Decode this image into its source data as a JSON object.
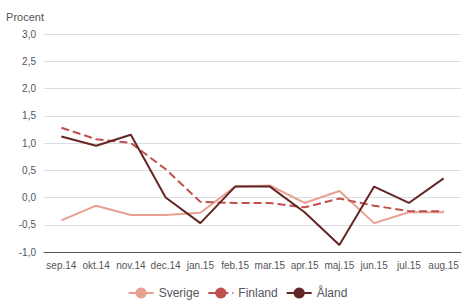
{
  "chart_data": {
    "type": "line",
    "ylabel": "Procent",
    "categories": [
      "sep.14",
      "okt.14",
      "nov.14",
      "dec.14",
      "jan.15",
      "feb.15",
      "mar.15",
      "apr.15",
      "maj.15",
      "jun.15",
      "jul.15",
      "aug.15"
    ],
    "series": [
      {
        "name": "Sverige",
        "color": "#e8a090",
        "line_style": "solid",
        "values": [
          -0.42,
          -0.15,
          -0.32,
          -0.32,
          -0.28,
          0.2,
          0.22,
          -0.1,
          0.12,
          -0.47,
          -0.27,
          -0.27
        ]
      },
      {
        "name": "Finland",
        "color": "#c0504d",
        "line_style": "dashed",
        "values": [
          1.28,
          1.07,
          1.0,
          0.52,
          -0.08,
          -0.1,
          -0.1,
          -0.18,
          -0.02,
          -0.15,
          -0.25,
          -0.25
        ]
      },
      {
        "name": "Åland",
        "color": "#632523",
        "line_style": "solid",
        "values": [
          1.12,
          0.95,
          1.15,
          0.0,
          -0.47,
          0.2,
          0.2,
          -0.27,
          -0.87,
          0.2,
          -0.1,
          0.35
        ]
      }
    ],
    "ylim": [
      -1.0,
      3.0
    ],
    "yticks": [
      {
        "value": -1.0,
        "label": "-1,0"
      },
      {
        "value": -0.5,
        "label": "-0,5"
      },
      {
        "value": 0.0,
        "label": "0,0"
      },
      {
        "value": 0.5,
        "label": "0,5"
      },
      {
        "value": 1.0,
        "label": "1,0"
      },
      {
        "value": 1.5,
        "label": "1,5"
      },
      {
        "value": 2.0,
        "label": "2,0"
      },
      {
        "value": 2.5,
        "label": "2,5"
      },
      {
        "value": 3.0,
        "label": "3,0"
      }
    ],
    "grid": true,
    "legend": "bottom"
  }
}
